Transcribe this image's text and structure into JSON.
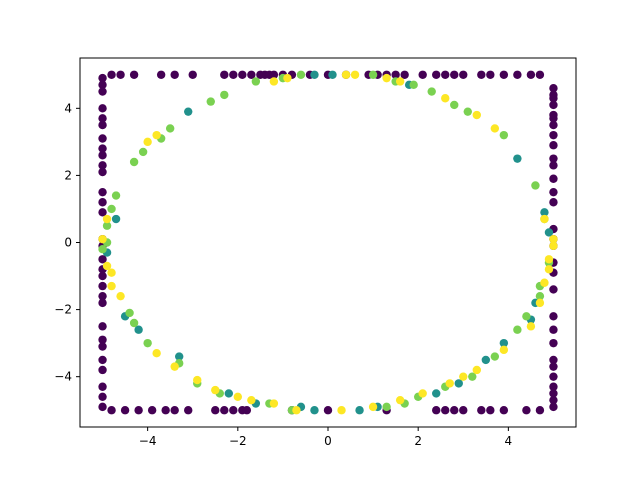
{
  "chart_data": {
    "type": "scatter",
    "title": "",
    "xlabel": "",
    "ylabel": "",
    "xlim": [
      -5.5,
      5.5
    ],
    "ylim": [
      -5.5,
      5.5
    ],
    "grid": false,
    "legend": "none",
    "x_ticks": [
      -4,
      -2,
      0,
      2,
      4
    ],
    "y_ticks": [
      -4,
      -2,
      0,
      2,
      4
    ],
    "x_tick_labels": [
      "−4",
      "−2",
      "0",
      "2",
      "4"
    ],
    "y_tick_labels": [
      "−4",
      "−2",
      "0",
      "2",
      "4"
    ],
    "colormap": "viridis",
    "series": [
      {
        "color": "#440154",
        "x": [
          -5,
          -5,
          -5,
          -5,
          -5,
          -5,
          -5,
          -5,
          -5,
          -5,
          -5,
          -5,
          -5,
          -5,
          -5,
          -5,
          -5,
          -5,
          -5,
          -5,
          -5,
          -5,
          -5,
          -5,
          -5,
          -5,
          -5,
          -5,
          -5,
          -5,
          5,
          5,
          5,
          5,
          5,
          5,
          5,
          5,
          5,
          5,
          5,
          5,
          5,
          5,
          5,
          5,
          5,
          5,
          5,
          5,
          5,
          5,
          5,
          5,
          5,
          5,
          5,
          5,
          5,
          5,
          -4.8,
          -4.6,
          -4.3,
          -3.7,
          -3.4,
          -3.0,
          -2.3,
          -2.1,
          -1.9,
          -1.7,
          -1.5,
          -1.4,
          -1.3,
          -1.2,
          -1.0,
          -0.8,
          -0.4,
          0.0,
          0.4,
          0.9,
          1.1,
          1.3,
          1.5,
          1.7,
          2.1,
          2.4,
          2.6,
          2.8,
          3.0,
          3.4,
          3.6,
          3.9,
          4.2,
          4.5,
          4.7,
          -4.8,
          -4.5,
          -4.2,
          -3.9,
          -3.6,
          -3.4,
          -3.1,
          -2.5,
          -2.3,
          -2.1,
          -1.9,
          -1.8,
          -0.8,
          0.0,
          1.3,
          2.4,
          2.6,
          2.8,
          3.0,
          3.4,
          3.6,
          3.9,
          4.4,
          4.7
        ],
        "y": [
          4.9,
          4.7,
          4.5,
          4.0,
          3.7,
          3.5,
          3.1,
          2.8,
          2.6,
          2.3,
          2.1,
          1.5,
          1.2,
          0.9,
          0.1,
          -0.1,
          -0.5,
          -0.8,
          -1.0,
          -1.3,
          -1.6,
          -1.8,
          -2.5,
          -2.9,
          -3.1,
          -3.5,
          -3.8,
          -4.3,
          -4.6,
          -4.9,
          4.6,
          4.4,
          4.3,
          4.1,
          3.8,
          3.7,
          3.5,
          3.2,
          2.9,
          2.5,
          2.3,
          1.9,
          1.5,
          1.2,
          0.4,
          0.1,
          -0.1,
          -0.6,
          -0.9,
          -1.4,
          -2.2,
          -2.6,
          -3.0,
          -3.5,
          -3.7,
          -4.0,
          -4.3,
          -4.5,
          -4.7,
          -4.9,
          5,
          5,
          5,
          5,
          5,
          5,
          5,
          5,
          5,
          5,
          5,
          5,
          5,
          5,
          5,
          5,
          5,
          5,
          5,
          5,
          5,
          5,
          5,
          5,
          5,
          5,
          5,
          5,
          5,
          5,
          5,
          5,
          5,
          5,
          5,
          -5,
          -5,
          -5,
          -5,
          -5,
          -5,
          -5,
          -5,
          -5,
          -5,
          -5,
          -5,
          -5,
          -5,
          -5,
          -5,
          -5,
          -5,
          -5,
          -5,
          -5,
          -5,
          -5,
          -5
        ]
      },
      {
        "color": "#21918c",
        "x": [
          -0.3,
          0.1,
          1.8,
          -3.1,
          -4.7,
          4.8,
          4.6,
          4.2,
          -4.2,
          -2.2,
          -0.3,
          0.7,
          2.4,
          2.9,
          4.9,
          -4.9,
          3.5,
          3.9,
          -3.3,
          -1.6,
          -0.6,
          1.1,
          -4.5,
          4.5
        ],
        "y": [
          5.0,
          5.0,
          4.7,
          3.9,
          0.7,
          0.9,
          -1.8,
          2.5,
          -2.6,
          -4.5,
          -5.0,
          -5.0,
          -4.5,
          -4.2,
          0.3,
          -0.3,
          -3.5,
          -3.0,
          -3.4,
          -4.8,
          -4.9,
          -4.9,
          -2.2,
          -2.3
        ]
      },
      {
        "color": "#7ad151",
        "x": [
          -1.6,
          -1.0,
          -0.6,
          1.0,
          1.5,
          1.9,
          2.3,
          2.8,
          3.1,
          3.9,
          4.6,
          4.8,
          4.7,
          -4.3,
          -4.1,
          -3.7,
          -3.5,
          -2.6,
          -2.3,
          -4.9,
          -4.8,
          -4.7,
          -4.4,
          -4.3,
          -4.0,
          -3.3,
          -2.9,
          -2.4,
          -1.3,
          -0.8,
          1.3,
          1.7,
          2.0,
          2.6,
          3.2,
          3.7,
          4.2,
          4.4,
          4.7,
          4.9,
          -4.9,
          -5.0
        ],
        "y": [
          4.8,
          4.9,
          5.0,
          5.0,
          4.8,
          4.7,
          4.5,
          4.1,
          3.9,
          3.2,
          1.7,
          0.7,
          -1.3,
          2.4,
          2.7,
          3.1,
          3.4,
          4.2,
          4.4,
          0.5,
          1.0,
          1.4,
          -2.1,
          -2.4,
          -3.0,
          -3.6,
          -4.2,
          -4.5,
          -4.8,
          -5.0,
          -4.9,
          -4.8,
          -4.6,
          -4.3,
          -4.0,
          -3.4,
          -2.6,
          -2.2,
          -1.6,
          -0.6,
          0.0,
          -0.2
        ]
      },
      {
        "color": "#fde725",
        "x": [
          -1.2,
          -0.9,
          0.4,
          0.6,
          1.3,
          1.6,
          2.6,
          3.3,
          3.7,
          4.8,
          5.0,
          4.9,
          4.8,
          -3.8,
          -4.0,
          -5.0,
          -4.9,
          -4.9,
          -4.8,
          -4.8,
          -4.6,
          -3.8,
          -3.4,
          -2.9,
          -2.5,
          -2.0,
          -1.7,
          -1.2,
          -0.7,
          0.3,
          1.0,
          1.6,
          2.1,
          2.7,
          3.0,
          3.3,
          3.9,
          4.5,
          4.7,
          4.9,
          5.0
        ],
        "y": [
          4.8,
          4.9,
          5.0,
          5.0,
          4.9,
          4.8,
          4.3,
          3.8,
          3.4,
          0.7,
          -0.1,
          -0.5,
          -1.2,
          3.2,
          3.0,
          0.1,
          0.7,
          -0.7,
          -0.9,
          -1.3,
          -1.6,
          -3.3,
          -3.7,
          -4.1,
          -4.4,
          -4.6,
          -4.7,
          -4.8,
          -5.0,
          -5.0,
          -4.9,
          -4.7,
          -4.5,
          -4.2,
          -4.0,
          -3.8,
          -3.2,
          -2.5,
          -1.8,
          -0.8,
          0.1
        ]
      }
    ]
  }
}
